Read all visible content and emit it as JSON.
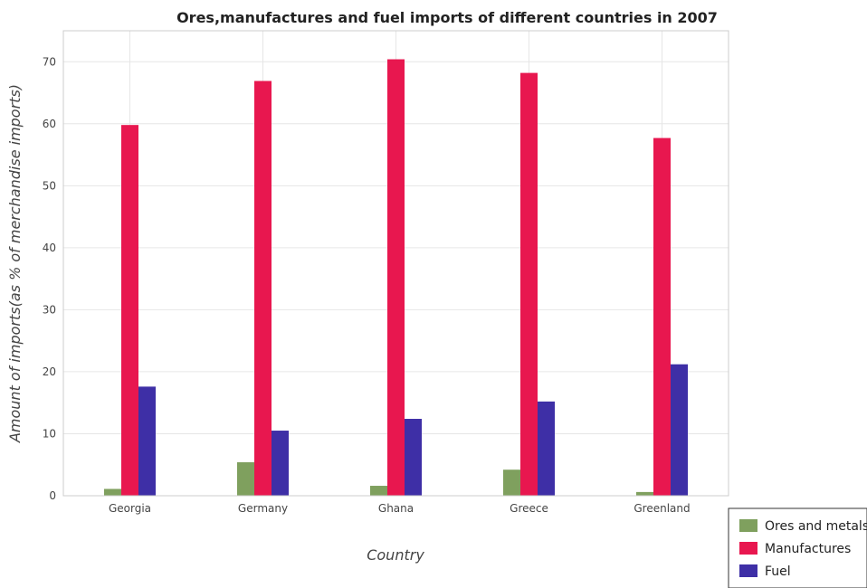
{
  "chart_data": {
    "type": "bar",
    "title": "Ores,manufactures and fuel imports of different countries in 2007",
    "xlabel": "Country",
    "ylabel": "Amount of imports(as % of merchandise imports)",
    "categories": [
      "Georgia",
      "Germany",
      "Ghana",
      "Greece",
      "Greenland"
    ],
    "ylim": [
      0,
      75
    ],
    "yticks": [
      0,
      10,
      20,
      30,
      40,
      50,
      60,
      70
    ],
    "grid": true,
    "legend_position": "bottom-right",
    "series": [
      {
        "name": "Ores and metals",
        "color": "#7fa05e",
        "values": [
          1.1,
          5.4,
          1.6,
          4.2,
          0.6
        ]
      },
      {
        "name": "Manufactures",
        "color": "#e8174f",
        "values": [
          59.8,
          66.9,
          70.4,
          68.2,
          57.7
        ]
      },
      {
        "name": "Fuel",
        "color": "#3e2fa6",
        "values": [
          17.6,
          10.5,
          12.4,
          15.2,
          21.2
        ]
      }
    ]
  }
}
